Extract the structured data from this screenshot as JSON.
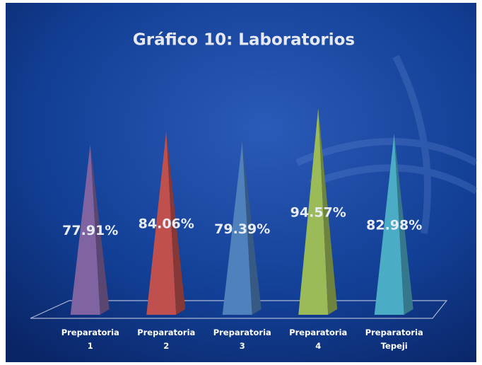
{
  "chart_data": {
    "type": "pyramid",
    "title": "Gráfico 10: Laboratorios",
    "categories": [
      "Preparatoria 1",
      "Preparatoria 2",
      "Preparatoria 3",
      "Preparatoria 4",
      "Preparatoria Tepeji"
    ],
    "values": [
      77.91,
      84.06,
      79.39,
      94.57,
      82.98
    ],
    "value_labels": [
      "77.91%",
      "84.06%",
      "79.39%",
      "94.57%",
      "82.98%"
    ],
    "colors": [
      "#8064a2",
      "#c0504d",
      "#4f81bd",
      "#9bbb59",
      "#4bacc6"
    ],
    "ylim": [
      0,
      100
    ]
  }
}
